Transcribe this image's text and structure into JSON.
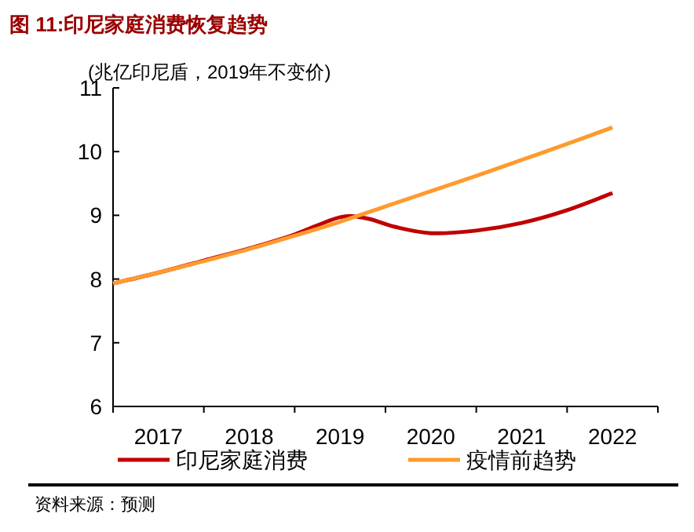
{
  "chart_data": {
    "type": "line",
    "title": "图 11:印尼家庭消费恢复趋势",
    "ylabel": "(兆亿印尼盾，2019年不变价)",
    "xlim": [
      2016.5,
      2022.5
    ],
    "xticks": [
      2017,
      2018,
      2019,
      2020,
      2021,
      2022
    ],
    "ylim": [
      6,
      11
    ],
    "yticks": [
      6,
      7,
      8,
      9,
      10,
      11
    ],
    "series": [
      {
        "name": "印尼家庭消费",
        "color": "#c00000",
        "x": [
          2016.5,
          2017,
          2017.5,
          2018,
          2018.5,
          2019,
          2019.3,
          2019.6,
          2020,
          2020.5,
          2021,
          2021.5,
          2022
        ],
        "values": [
          7.93,
          8.1,
          8.29,
          8.48,
          8.7,
          8.97,
          8.95,
          8.82,
          8.72,
          8.76,
          8.88,
          9.08,
          9.35
        ]
      },
      {
        "name": "疫情前趋势",
        "color": "#ff9a2e",
        "x": [
          2016.5,
          2017,
          2017.5,
          2018,
          2018.5,
          2019,
          2019.5,
          2020,
          2020.5,
          2021,
          2021.5,
          2022
        ],
        "values": [
          7.93,
          8.1,
          8.28,
          8.47,
          8.68,
          8.9,
          9.14,
          9.38,
          9.62,
          9.87,
          10.12,
          10.38
        ]
      }
    ],
    "legend": "bottom",
    "grid": false,
    "marker": "none",
    "line_style": "solid",
    "annotations": [
      "资料来源：预测"
    ]
  }
}
